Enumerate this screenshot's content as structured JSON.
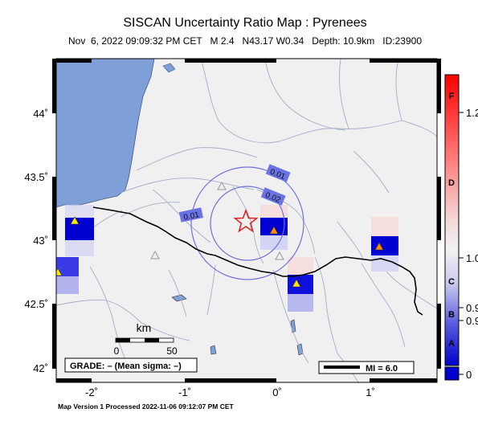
{
  "header": {
    "title": "SISCAN Uncertainty Ratio Map : Pyrenees",
    "subtitle": "Nov  6, 2022 09:09:32 PM CET   M 2.4   N43.17 W0.34   Depth: 10.9km   ID:23900"
  },
  "axes": {
    "lat_ticks": [
      "44˚",
      "43.5˚",
      "43˚",
      "42.5˚",
      "42˚"
    ],
    "lon_ticks": [
      "-2˚",
      "-1˚",
      "0˚",
      "1˚"
    ]
  },
  "contours": {
    "labels": [
      "0.01",
      "0.02",
      "0.01"
    ]
  },
  "scalebar": {
    "unit": "km",
    "min_label": "0",
    "max_label": "50"
  },
  "grade_box": {
    "text": "GRADE: – (Mean sigma: –)"
  },
  "mi_box": {
    "text": "MI = 6.0"
  },
  "colorbar": {
    "letters": [
      "F",
      "D",
      "C",
      "B",
      "A"
    ],
    "values": [
      "1.2",
      "1.0",
      "0.9",
      "0.9",
      "0"
    ],
    "colors": {
      "top": "#ff0000",
      "mid": "#f2f2f2",
      "bottom": "#0000cc"
    }
  },
  "epicenter": {
    "marker": "star-icon",
    "color": "#e02020"
  },
  "colors": {
    "sea": "#7e9fd8",
    "land": "#f0f0f0",
    "rivers": "#9aa6c4",
    "border": "#000000",
    "contour": "#7070e0",
    "station_fill_orange": "#ff8c00",
    "station_fill_yellow": "#ffe800",
    "cell_blue": "#0000d0"
  },
  "footer": {
    "text": "Map Version 1 Processed 2022-11-06 09:12:07 PM CET"
  }
}
